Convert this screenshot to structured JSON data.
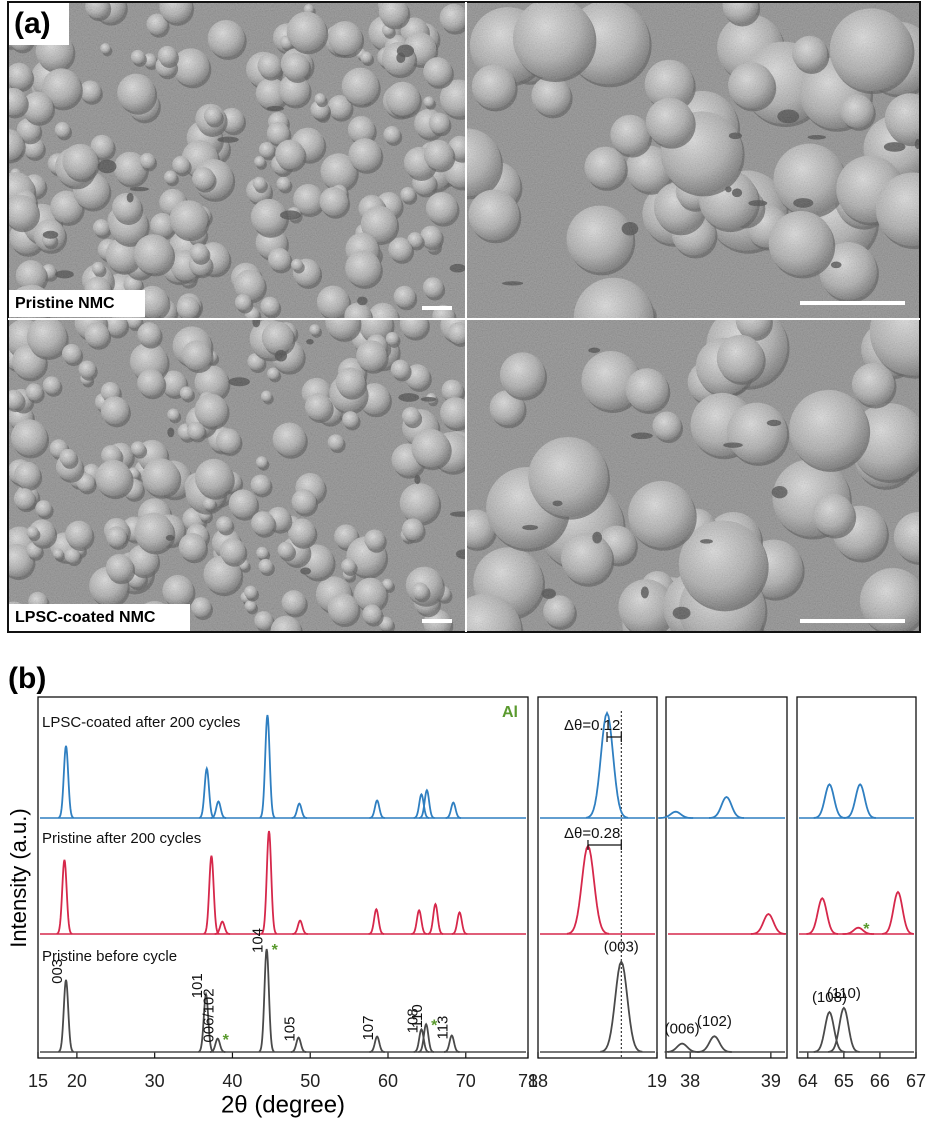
{
  "panel_a": {
    "label": "(a)",
    "captions": [
      "Pristine NMC",
      "LPSC-coated NMC"
    ]
  },
  "panel_b": {
    "label": "(b)",
    "y_label": "Intensity (a.u.)",
    "x_label": "2θ (degree)"
  },
  "chart_data": [
    {
      "type": "spectrum",
      "xlim": [
        15,
        78
      ],
      "xticks": [
        15,
        20,
        30,
        40,
        50,
        60,
        70,
        78
      ],
      "note": "Al",
      "note_color": "#5a9a2e",
      "series": [
        {
          "name": "LPSC-coated after 200 cycles",
          "color": "#2f7fc1",
          "x": [
            18.6,
            36.7,
            38.2,
            44.5,
            48.6,
            58.6,
            64.3,
            65.0,
            68.4
          ],
          "values": [
            70,
            48,
            16,
            100,
            14,
            17,
            23,
            27,
            15
          ]
        },
        {
          "name": "Pristine after 200 cycles",
          "color": "#d6284b",
          "x": [
            18.4,
            37.3,
            38.7,
            44.7,
            48.7,
            58.5,
            64.0,
            66.1,
            69.2
          ],
          "values": [
            72,
            76,
            12,
            100,
            13,
            24,
            23,
            29,
            21
          ]
        },
        {
          "name": "Pristine before cycle",
          "color": "#4a4a4a",
          "x": [
            18.6,
            36.6,
            38.1,
            44.4,
            48.5,
            58.6,
            64.3,
            64.9,
            68.2
          ],
          "values": [
            70,
            56,
            13,
            100,
            14,
            15,
            22,
            27,
            16
          ],
          "labels": [
            "003",
            "101",
            "006/102",
            "104",
            "105",
            "107",
            "108",
            "110",
            "113"
          ],
          "impurity_marks": [
            null,
            null,
            "*",
            "*",
            null,
            null,
            null,
            "*",
            null
          ]
        }
      ]
    },
    {
      "type": "spectrum",
      "xlim": [
        18,
        19
      ],
      "xticks": [
        18,
        19
      ],
      "reference_line": 18.7,
      "shifts": [
        {
          "series": 0,
          "label": "Δθ=0.12"
        },
        {
          "series": 1,
          "label": "Δθ=0.28"
        }
      ],
      "series": [
        {
          "color": "#2f7fc1",
          "x": [
            18.58
          ],
          "values": [
            100
          ]
        },
        {
          "color": "#d6284b",
          "x": [
            18.42
          ],
          "values": [
            84
          ]
        },
        {
          "color": "#4a4a4a",
          "x": [
            18.7
          ],
          "values": [
            86
          ],
          "labels": [
            "(003)"
          ]
        }
      ]
    },
    {
      "type": "spectrum",
      "xlim": [
        37.7,
        39.2
      ],
      "xticks": [
        38,
        39
      ],
      "series": [
        {
          "color": "#2f7fc1",
          "x": [
            37.82,
            38.45
          ],
          "values": [
            6,
            20
          ]
        },
        {
          "color": "#d6284b",
          "x": [
            38.97
          ],
          "values": [
            19
          ]
        },
        {
          "color": "#4a4a4a",
          "x": [
            37.9,
            38.3
          ],
          "values": [
            8,
            15
          ],
          "labels": [
            "(006)",
            "(102)"
          ]
        }
      ]
    },
    {
      "type": "spectrum",
      "xlim": [
        63.7,
        67.0
      ],
      "xticks": [
        64,
        65,
        66,
        67
      ],
      "series": [
        {
          "color": "#2f7fc1",
          "x": [
            64.6,
            65.45
          ],
          "values": [
            32,
            32
          ]
        },
        {
          "color": "#d6284b",
          "x": [
            64.4,
            65.4,
            66.5
          ],
          "values": [
            34,
            6,
            40
          ],
          "impurity_marks": [
            null,
            "*",
            null
          ]
        },
        {
          "color": "#4a4a4a",
          "x": [
            64.6,
            65.0
          ],
          "values": [
            38,
            42
          ],
          "labels": [
            "(108)",
            "(110)"
          ]
        }
      ]
    }
  ]
}
